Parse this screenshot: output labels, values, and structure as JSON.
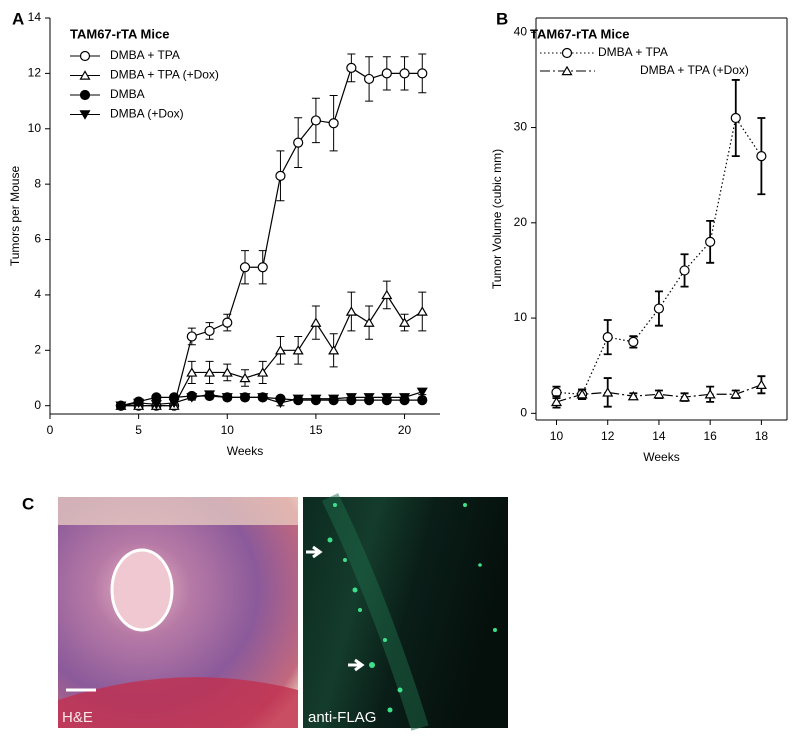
{
  "chart_data": [
    {
      "type": "line",
      "panel_label": "A",
      "title": "TAM67-rTA Mice",
      "x_label": "Weeks",
      "y_label": "Tumors per Mouse",
      "x": [
        4,
        5,
        6,
        7,
        8,
        9,
        10,
        11,
        12,
        13,
        14,
        15,
        16,
        17,
        18,
        19,
        20,
        21
      ],
      "xlim": [
        0,
        22
      ],
      "xticks": [
        0,
        5,
        10,
        15,
        20
      ],
      "ylim": [
        -0.3,
        14
      ],
      "yticks": [
        0,
        2,
        4,
        6,
        8,
        10,
        12,
        14
      ],
      "box": false,
      "series": [
        {
          "name": "DMBA + TPA",
          "color": "#000000",
          "marker": "open-circle",
          "linestyle": "solid",
          "values": [
            0,
            0,
            0,
            0,
            2.5,
            2.7,
            3.0,
            5.0,
            5.0,
            8.3,
            9.5,
            10.3,
            10.2,
            12.2,
            11.8,
            12.0,
            12.0,
            12.0
          ],
          "errors": [
            0,
            0,
            0,
            0,
            0.3,
            0.3,
            0.3,
            0.6,
            0.6,
            0.9,
            0.9,
            0.8,
            1.0,
            0.5,
            0.8,
            0.6,
            0.6,
            0.7
          ]
        },
        {
          "name": "DMBA + TPA (+Dox)",
          "color": "#000000",
          "marker": "open-triangle",
          "linestyle": "solid",
          "values": [
            0,
            0,
            0,
            0,
            1.2,
            1.2,
            1.2,
            1.0,
            1.2,
            2.0,
            2.0,
            3.0,
            2.0,
            3.4,
            3.0,
            4.0,
            3.0,
            3.4
          ],
          "errors": [
            0,
            0,
            0,
            0,
            0.4,
            0.4,
            0.3,
            0.3,
            0.4,
            0.5,
            0.5,
            0.6,
            0.6,
            0.7,
            0.6,
            0.5,
            0.3,
            0.7
          ]
        },
        {
          "name": "DMBA",
          "color": "#000000",
          "marker": "filled-circle",
          "linestyle": "solid",
          "values": [
            0,
            0.15,
            0.3,
            0.3,
            0.35,
            0.35,
            0.3,
            0.3,
            0.3,
            0.25,
            0.2,
            0.2,
            0.2,
            0.2,
            0.2,
            0.2,
            0.2,
            0.2
          ],
          "errors": [
            0,
            0.05,
            0.1,
            0.1,
            0.1,
            0.1,
            0.1,
            0.1,
            0.1,
            0.1,
            0.1,
            0.1,
            0.1,
            0.1,
            0.1,
            0.1,
            0.1,
            0.1
          ]
        },
        {
          "name": "DMBA (+Dox)",
          "color": "#000000",
          "marker": "filled-down-triangle",
          "linestyle": "solid",
          "values": [
            0,
            0.1,
            0.05,
            0.1,
            0.3,
            0.4,
            0.3,
            0.3,
            0.3,
            0.1,
            0.25,
            0.25,
            0.25,
            0.3,
            0.3,
            0.3,
            0.3,
            0.5
          ],
          "errors": [
            0,
            0.05,
            0.05,
            0.05,
            0.1,
            0.1,
            0.1,
            0.1,
            0.1,
            0.1,
            0.1,
            0.1,
            0.1,
            0.1,
            0.1,
            0.1,
            0.1,
            0.1
          ]
        }
      ]
    },
    {
      "type": "line",
      "panel_label": "B",
      "title": "TAM67-rTA Mice",
      "x_label": "Weeks",
      "y_label": "Tumor Volume (cubic mm)",
      "x": [
        10,
        11,
        12,
        13,
        14,
        15,
        16,
        17,
        18
      ],
      "xlim": [
        9.2,
        19
      ],
      "xticks": [
        10,
        12,
        14,
        16,
        18
      ],
      "ylim": [
        -0.7,
        41.5
      ],
      "yticks": [
        0,
        10,
        20,
        30,
        40
      ],
      "box": true,
      "series": [
        {
          "name": "DMBA + TPA",
          "color": "#000000",
          "marker": "open-circle",
          "linestyle": "dotted",
          "values": [
            2.2,
            2.0,
            8.0,
            7.5,
            11.0,
            15.0,
            18.0,
            31.0,
            27.0
          ],
          "errors": [
            0.6,
            0.5,
            1.8,
            0.6,
            1.8,
            1.7,
            2.2,
            4.0,
            4.0
          ]
        },
        {
          "name": "DMBA + TPA (+Dox)",
          "color": "#000000",
          "marker": "open-triangle",
          "linestyle": "dashdot",
          "values": [
            1.2,
            2.0,
            2.2,
            1.8,
            2.0,
            1.7,
            2.0,
            2.0,
            3.0
          ],
          "errors": [
            0.6,
            0.5,
            1.5,
            0.3,
            0.4,
            0.4,
            0.8,
            0.4,
            0.9
          ]
        }
      ]
    }
  ],
  "images": {
    "panel_label": "C",
    "labels": [
      "H&E",
      "anti-FLAG"
    ]
  }
}
